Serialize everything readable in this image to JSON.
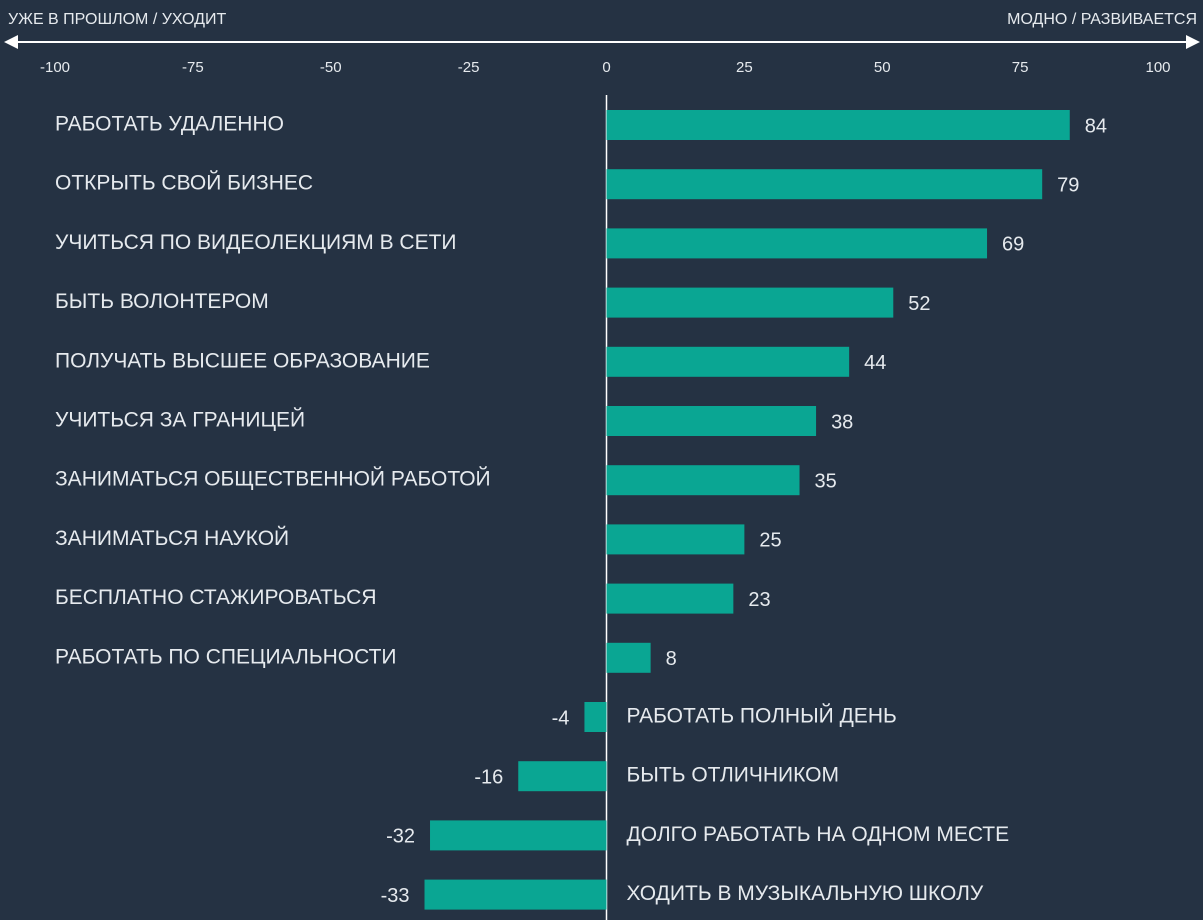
{
  "chart_data": {
    "type": "bar",
    "orientation": "horizontal",
    "left_label": "УЖЕ В ПРОШЛОМ / УХОДИТ",
    "right_label": "МОДНО / РАЗВИВАЕТСЯ",
    "categories": [
      "РАБОТАТЬ УДАЛЕННО",
      "ОТКРЫТЬ СВОЙ БИЗНЕС",
      "УЧИТЬСЯ ПО ВИДЕОЛЕКЦИЯМ В СЕТИ",
      "БЫТЬ ВОЛОНТЕРОМ",
      "ПОЛУЧАТЬ ВЫСШЕЕ ОБРАЗОВАНИЕ",
      "УЧИТЬСЯ ЗА ГРАНИЦЕЙ",
      "ЗАНИМАТЬСЯ ОБЩЕСТВЕННОЙ РАБОТОЙ",
      "ЗАНИМАТЬСЯ НАУКОЙ",
      "БЕСПЛАТНО СТАЖИРОВАТЬСЯ",
      "РАБОТАТЬ ПО СПЕЦИАЛЬНОСТИ",
      "РАБОТАТЬ ПОЛНЫЙ ДЕНЬ",
      "БЫТЬ ОТЛИЧНИКОМ",
      "ДОЛГО РАБОТАТЬ НА ОДНОМ МЕСТЕ",
      "ХОДИТЬ В МУЗЫКАЛЬНУЮ ШКОЛУ"
    ],
    "values": [
      84,
      79,
      69,
      52,
      44,
      38,
      35,
      25,
      23,
      8,
      -4,
      -16,
      -32,
      -33
    ],
    "color": "#0aa693",
    "xlim": [
      -100,
      100
    ],
    "xticks": [
      -100,
      -75,
      -50,
      -25,
      0,
      25,
      50,
      75,
      100
    ]
  }
}
